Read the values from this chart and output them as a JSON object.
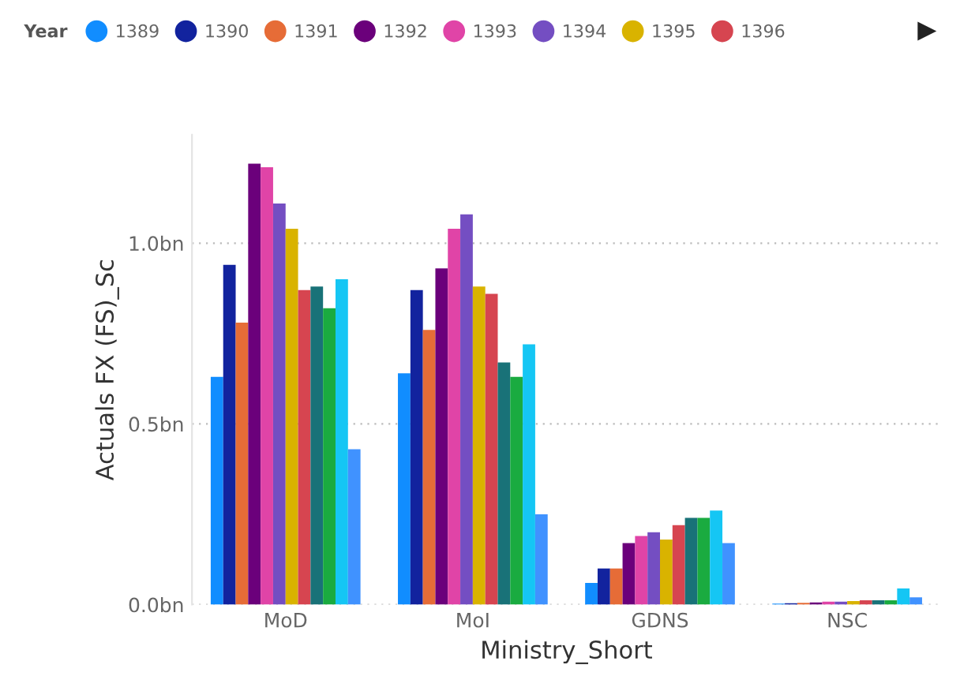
{
  "chart_data": {
    "type": "bar",
    "xlabel": "Ministry_Short",
    "ylabel": "Actuals FX (FS)_Sc",
    "legend_title": "Year",
    "legend": "top",
    "categories": [
      "MoD",
      "MoI",
      "GDNS",
      "NSC"
    ],
    "series": [
      {
        "name": "1389",
        "color": "#118dff",
        "values": [
          0.63,
          0.64,
          0.06,
          0.003
        ]
      },
      {
        "name": "1390",
        "color": "#12239e",
        "values": [
          0.94,
          0.87,
          0.1,
          0.004
        ]
      },
      {
        "name": "1391",
        "color": "#e66c37",
        "values": [
          0.78,
          0.76,
          0.1,
          0.005
        ]
      },
      {
        "name": "1392",
        "color": "#6b007b",
        "values": [
          1.22,
          0.93,
          0.17,
          0.006
        ]
      },
      {
        "name": "1393",
        "color": "#e044a7",
        "values": [
          1.21,
          1.04,
          0.19,
          0.008
        ]
      },
      {
        "name": "1394",
        "color": "#744ec2",
        "values": [
          1.11,
          1.08,
          0.2,
          0.008
        ]
      },
      {
        "name": "1395",
        "color": "#d9b300",
        "values": [
          1.04,
          0.88,
          0.18,
          0.01
        ]
      },
      {
        "name": "1396",
        "color": "#d64550",
        "values": [
          0.87,
          0.86,
          0.22,
          0.012
        ]
      },
      {
        "color": "#197278",
        "values": [
          0.88,
          0.67,
          0.24,
          0.012
        ]
      },
      {
        "color": "#1aab40",
        "values": [
          0.82,
          0.63,
          0.24,
          0.012
        ]
      },
      {
        "color": "#15c6f4",
        "values": [
          0.9,
          0.72,
          0.26,
          0.045
        ]
      },
      {
        "color": "#4092ff",
        "values": [
          0.43,
          0.25,
          0.17,
          0.02
        ]
      }
    ],
    "ylim": [
      0,
      1.3
    ],
    "yticks": [
      {
        "value": 0,
        "label": "0.0bn"
      },
      {
        "value": 0.5,
        "label": "0.5bn"
      },
      {
        "value": 1.0,
        "label": "1.0bn"
      }
    ],
    "grid": "y"
  }
}
